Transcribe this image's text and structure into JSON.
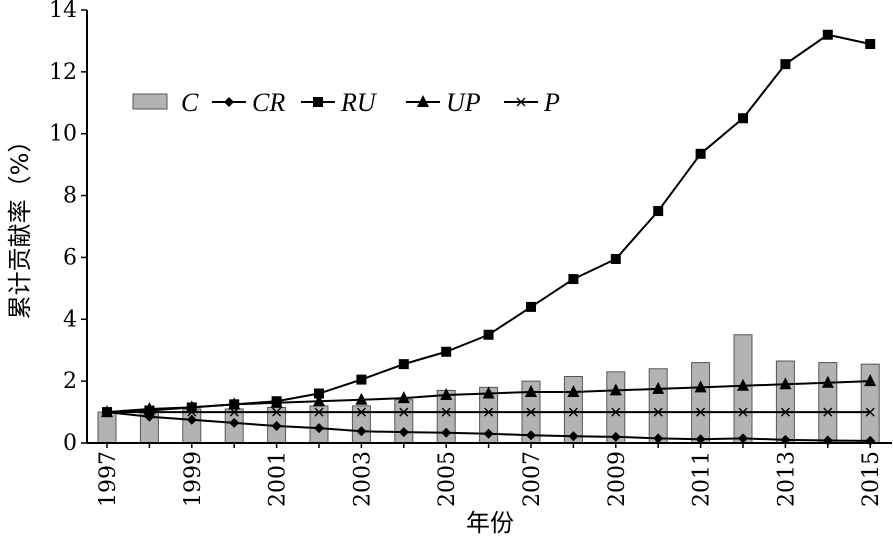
{
  "chart_data": {
    "type": "line",
    "xlabel": "年份",
    "ylabel": "累计贡献率（%）",
    "ylim": [
      0,
      14
    ],
    "yticks": [
      "0",
      "2",
      "4",
      "6",
      "8",
      "10",
      "12",
      "14"
    ],
    "xticks": [
      "1997",
      "1999",
      "2001",
      "2003",
      "2005",
      "2007",
      "2009",
      "2011",
      "2013",
      "2015"
    ],
    "x": [
      1997,
      1998,
      1999,
      2000,
      2001,
      2002,
      2003,
      2004,
      2005,
      2006,
      2007,
      2008,
      2009,
      2010,
      2011,
      2012,
      2013,
      2014,
      2015
    ],
    "legend_position": "top-left",
    "grid": false,
    "series": [
      {
        "name": "C",
        "kind": "bar",
        "marker": "bar",
        "values": [
          1.0,
          1.05,
          1.1,
          1.1,
          1.15,
          1.2,
          1.2,
          1.4,
          1.7,
          1.8,
          2.0,
          2.15,
          2.3,
          2.4,
          2.6,
          3.5,
          2.65,
          2.6,
          2.55
        ]
      },
      {
        "name": "CR",
        "kind": "line",
        "marker": "diamond",
        "values": [
          1.0,
          0.85,
          0.75,
          0.65,
          0.55,
          0.48,
          0.38,
          0.35,
          0.33,
          0.3,
          0.25,
          0.22,
          0.2,
          0.15,
          0.12,
          0.15,
          0.1,
          0.08,
          0.07
        ]
      },
      {
        "name": "RU",
        "kind": "line",
        "marker": "square",
        "values": [
          1.0,
          1.05,
          1.15,
          1.25,
          1.35,
          1.6,
          2.05,
          2.55,
          2.95,
          3.5,
          4.4,
          5.3,
          5.95,
          7.5,
          9.35,
          10.5,
          12.25,
          13.2,
          12.9
        ]
      },
      {
        "name": "UP",
        "kind": "line",
        "marker": "triangle",
        "values": [
          1.0,
          1.1,
          1.15,
          1.25,
          1.3,
          1.35,
          1.4,
          1.45,
          1.55,
          1.6,
          1.65,
          1.65,
          1.7,
          1.75,
          1.8,
          1.85,
          1.9,
          1.95,
          2.0
        ]
      },
      {
        "name": "P",
        "kind": "line",
        "marker": "x",
        "values": [
          1.0,
          1.0,
          1.0,
          1.0,
          1.0,
          1.0,
          1.0,
          1.0,
          1.0,
          1.0,
          1.0,
          1.0,
          1.0,
          1.0,
          1.0,
          1.0,
          1.0,
          1.0,
          1.0
        ]
      }
    ]
  }
}
